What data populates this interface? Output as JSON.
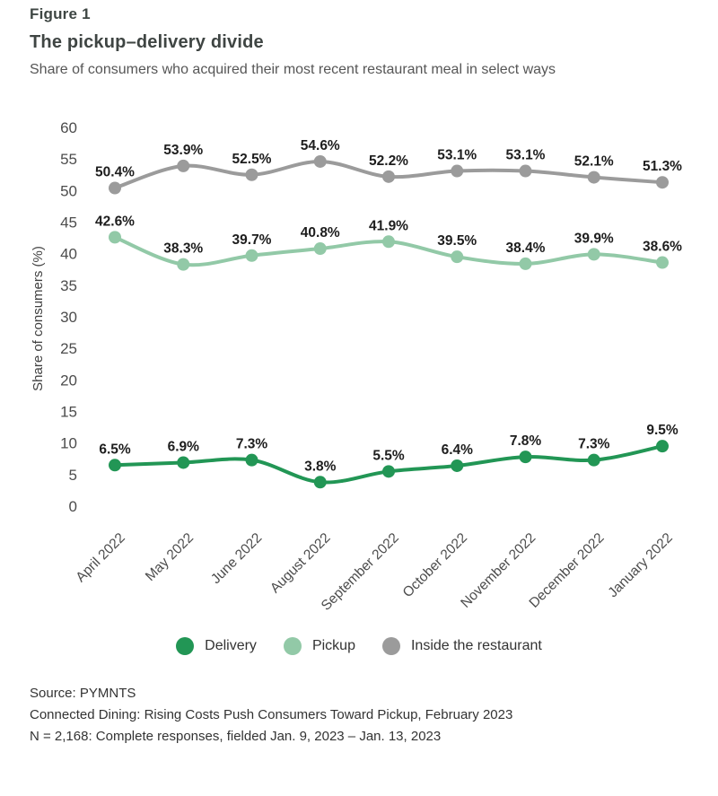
{
  "figure_label": "Figure 1",
  "title": "The pickup–delivery divide",
  "subtitle": "Share of consumers who acquired their most recent restaurant meal in select ways",
  "chart_data": {
    "type": "line",
    "categories": [
      "April 2022",
      "May 2022",
      "June 2022",
      "August 2022",
      "September 2022",
      "October 2022",
      "November 2022",
      "December 2022",
      "January 2022"
    ],
    "series": [
      {
        "name": "Delivery",
        "color": "#229655",
        "values": [
          6.5,
          6.9,
          7.3,
          3.8,
          5.5,
          6.4,
          7.8,
          7.3,
          9.5
        ]
      },
      {
        "name": "Pickup",
        "color": "#92c9a7",
        "values": [
          42.6,
          38.3,
          39.7,
          40.8,
          41.9,
          39.5,
          38.4,
          39.9,
          38.6
        ]
      },
      {
        "name": "Inside the restaurant",
        "color": "#9b9b9b",
        "values": [
          50.4,
          53.9,
          52.5,
          54.6,
          52.2,
          53.1,
          53.1,
          52.1,
          51.3
        ]
      }
    ],
    "ylabel": "Share of consumers (%)",
    "ylim": [
      0,
      60
    ],
    "ytick_step": 5,
    "grid": false,
    "legend_position": "bottom",
    "value_suffix": "%",
    "label_color": "#1d1d1d",
    "tick_color": "#4c4c4c"
  },
  "footer": {
    "line1": "Source: PYMNTS",
    "line2": "Connected Dining: Rising Costs Push Consumers Toward Pickup, February 2023",
    "line3": "N = 2,168: Complete responses, fielded Jan. 9, 2023 – Jan. 13, 2023"
  }
}
